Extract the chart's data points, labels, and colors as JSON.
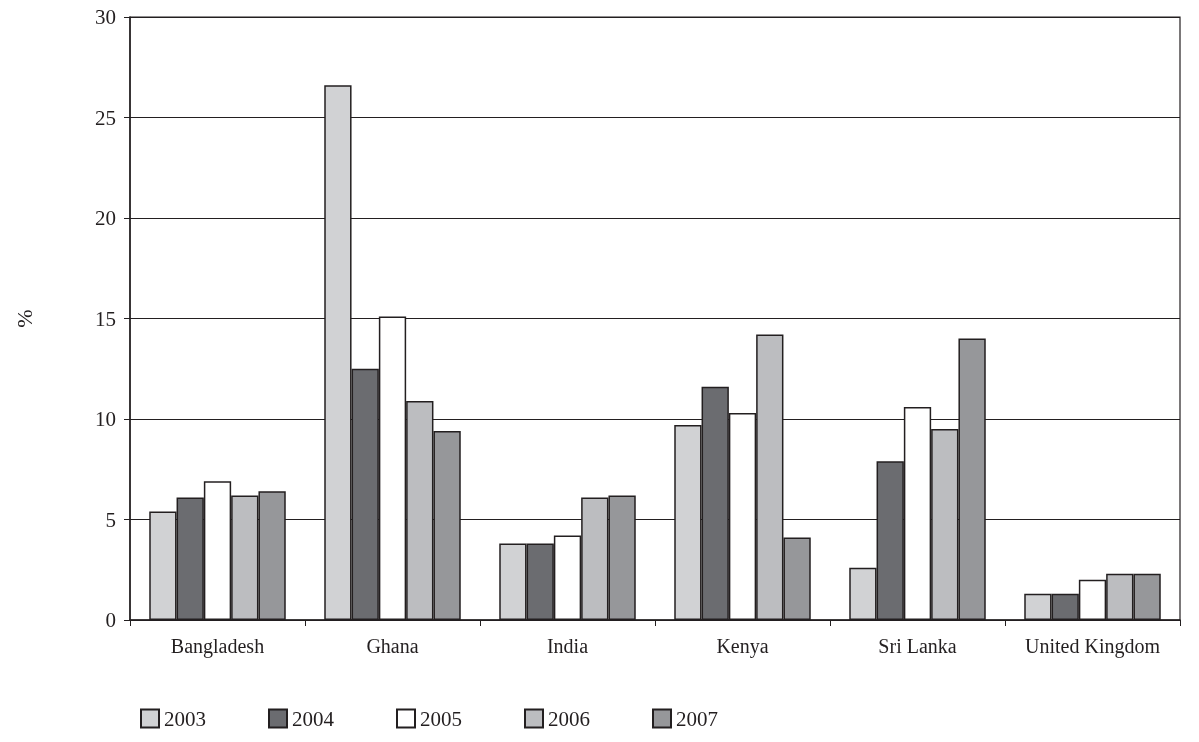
{
  "chart_data": {
    "type": "bar",
    "ylabel": "%",
    "categories": [
      "Bangladesh",
      "Ghana",
      "India",
      "Kenya",
      "Sri Lanka",
      "United Kingdom"
    ],
    "series": [
      {
        "name": "2003",
        "color": "#d1d2d4",
        "values": [
          5.4,
          26.6,
          3.8,
          9.7,
          2.6,
          1.3
        ]
      },
      {
        "name": "2004",
        "color": "#6b6c70",
        "values": [
          6.1,
          12.5,
          3.8,
          11.6,
          7.9,
          1.3
        ]
      },
      {
        "name": "2005",
        "color": "#ffffff",
        "values": [
          6.9,
          15.1,
          4.2,
          10.3,
          10.6,
          2.0
        ]
      },
      {
        "name": "2006",
        "color": "#bcbdc0",
        "values": [
          6.2,
          10.9,
          6.1,
          14.2,
          9.5,
          2.3
        ]
      },
      {
        "name": "2007",
        "color": "#96979a",
        "values": [
          6.4,
          9.4,
          6.2,
          4.1,
          14.0,
          2.3
        ]
      }
    ],
    "ylim": [
      0,
      30
    ],
    "yticks": [
      0,
      5,
      10,
      15,
      20,
      25,
      30
    ],
    "grid": "y",
    "legend": "bottom"
  }
}
